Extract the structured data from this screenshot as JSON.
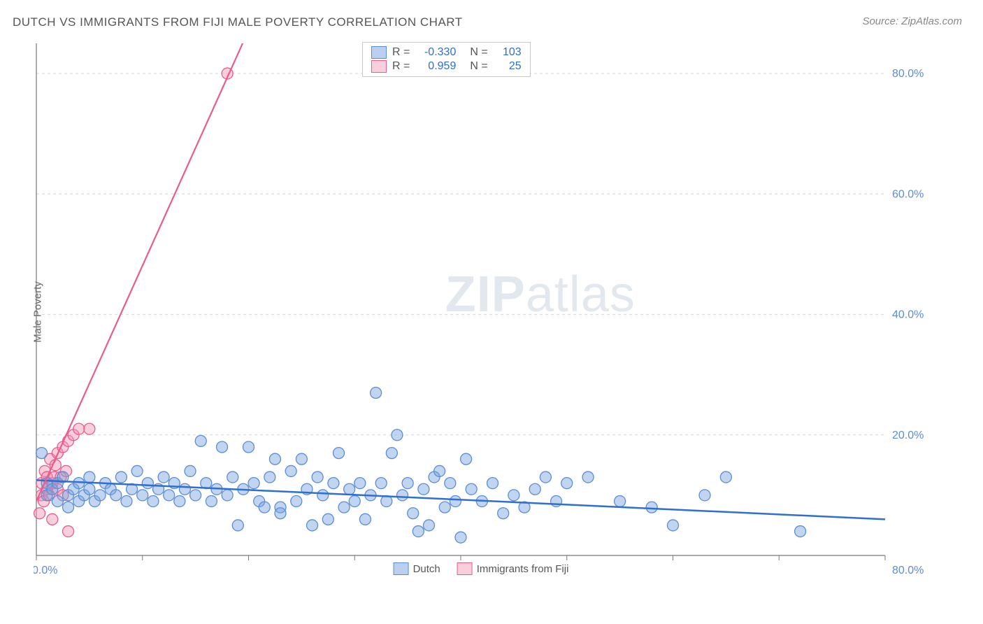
{
  "title": "DUTCH VS IMMIGRANTS FROM FIJI MALE POVERTY CORRELATION CHART",
  "source": "Source: ZipAtlas.com",
  "ylabel": "Male Poverty",
  "watermark_a": "ZIP",
  "watermark_b": "atlas",
  "chart": {
    "type": "scatter",
    "xlim": [
      0,
      80
    ],
    "ylim": [
      0,
      85
    ],
    "ytick_values": [
      20,
      40,
      60,
      80
    ],
    "ytick_labels": [
      "20.0%",
      "40.0%",
      "60.0%",
      "80.0%"
    ],
    "xtick_values": [
      0,
      10,
      20,
      30,
      40,
      50,
      60,
      70,
      80
    ],
    "x_origin_label": "0.0%",
    "x_end_label": "80.0%",
    "grid_color": "#d8d8d8",
    "axis_color": "#777777",
    "background_color": "#ffffff",
    "series": [
      {
        "name": "Dutch",
        "fill": "rgba(118,162,222,0.45)",
        "stroke": "#5b8dd6",
        "marker_r": 8,
        "trend": {
          "x1": 0,
          "y1": 12.5,
          "x2": 80,
          "y2": 6.0,
          "color": "#2f6fd0",
          "width": 2.5
        },
        "points": [
          [
            0.5,
            17
          ],
          [
            1,
            12
          ],
          [
            1,
            10
          ],
          [
            1.5,
            11
          ],
          [
            2,
            9
          ],
          [
            2,
            12
          ],
          [
            2.5,
            13
          ],
          [
            3,
            10
          ],
          [
            3,
            8
          ],
          [
            3.5,
            11
          ],
          [
            4,
            9
          ],
          [
            4,
            12
          ],
          [
            4.5,
            10
          ],
          [
            5,
            11
          ],
          [
            5,
            13
          ],
          [
            5.5,
            9
          ],
          [
            6,
            10
          ],
          [
            6.5,
            12
          ],
          [
            7,
            11
          ],
          [
            7.5,
            10
          ],
          [
            8,
            13
          ],
          [
            8.5,
            9
          ],
          [
            9,
            11
          ],
          [
            9.5,
            14
          ],
          [
            10,
            10
          ],
          [
            10.5,
            12
          ],
          [
            11,
            9
          ],
          [
            11.5,
            11
          ],
          [
            12,
            13
          ],
          [
            12.5,
            10
          ],
          [
            13,
            12
          ],
          [
            13.5,
            9
          ],
          [
            14,
            11
          ],
          [
            14.5,
            14
          ],
          [
            15,
            10
          ],
          [
            15.5,
            19
          ],
          [
            16,
            12
          ],
          [
            16.5,
            9
          ],
          [
            17,
            11
          ],
          [
            17.5,
            18
          ],
          [
            18,
            10
          ],
          [
            18.5,
            13
          ],
          [
            19,
            5
          ],
          [
            19.5,
            11
          ],
          [
            20,
            18
          ],
          [
            20.5,
            12
          ],
          [
            21,
            9
          ],
          [
            21.5,
            8
          ],
          [
            22,
            13
          ],
          [
            22.5,
            16
          ],
          [
            23,
            8
          ],
          [
            23,
            7
          ],
          [
            24,
            14
          ],
          [
            24.5,
            9
          ],
          [
            25,
            16
          ],
          [
            25.5,
            11
          ],
          [
            26,
            5
          ],
          [
            26.5,
            13
          ],
          [
            27,
            10
          ],
          [
            27.5,
            6
          ],
          [
            28,
            12
          ],
          [
            28.5,
            17
          ],
          [
            29,
            8
          ],
          [
            29.5,
            11
          ],
          [
            30,
            9
          ],
          [
            30.5,
            12
          ],
          [
            31,
            6
          ],
          [
            31.5,
            10
          ],
          [
            32,
            27
          ],
          [
            32.5,
            12
          ],
          [
            33,
            9
          ],
          [
            33.5,
            17
          ],
          [
            34,
            20
          ],
          [
            34.5,
            10
          ],
          [
            35,
            12
          ],
          [
            35.5,
            7
          ],
          [
            36,
            4
          ],
          [
            36.5,
            11
          ],
          [
            37,
            5
          ],
          [
            37.5,
            13
          ],
          [
            38,
            14
          ],
          [
            38.5,
            8
          ],
          [
            39,
            12
          ],
          [
            39.5,
            9
          ],
          [
            40,
            3
          ],
          [
            40.5,
            16
          ],
          [
            41,
            11
          ],
          [
            42,
            9
          ],
          [
            43,
            12
          ],
          [
            44,
            7
          ],
          [
            45,
            10
          ],
          [
            46,
            8
          ],
          [
            47,
            11
          ],
          [
            48,
            13
          ],
          [
            49,
            9
          ],
          [
            50,
            12
          ],
          [
            52,
            13
          ],
          [
            55,
            9
          ],
          [
            58,
            8
          ],
          [
            60,
            5
          ],
          [
            63,
            10
          ],
          [
            65,
            13
          ],
          [
            72,
            4
          ]
        ]
      },
      {
        "name": "Immigrants from Fiji",
        "fill": "rgba(242,148,178,0.45)",
        "stroke": "#e85d8c",
        "marker_r": 8,
        "trend": {
          "x1": 0,
          "y1": 9.0,
          "x2": 22,
          "y2": 95,
          "color": "#e85d8c",
          "width": 2.2
        },
        "points": [
          [
            0.3,
            7
          ],
          [
            0.5,
            10
          ],
          [
            0.5,
            12
          ],
          [
            0.7,
            9
          ],
          [
            0.8,
            14
          ],
          [
            1,
            11
          ],
          [
            1,
            13
          ],
          [
            1.2,
            10
          ],
          [
            1.3,
            16
          ],
          [
            1.5,
            12
          ],
          [
            1.5,
            6
          ],
          [
            1.7,
            13
          ],
          [
            1.8,
            15
          ],
          [
            2,
            11
          ],
          [
            2,
            17
          ],
          [
            2.3,
            13
          ],
          [
            2.5,
            18
          ],
          [
            2.5,
            10
          ],
          [
            2.8,
            14
          ],
          [
            3,
            19
          ],
          [
            3,
            4
          ],
          [
            3.5,
            20
          ],
          [
            4,
            21
          ],
          [
            5,
            21
          ],
          [
            18,
            80
          ]
        ]
      }
    ]
  },
  "stats": [
    {
      "swatch": "blue",
      "r_label": "R =",
      "r": "-0.330",
      "n_label": "N =",
      "n": "103"
    },
    {
      "swatch": "pink",
      "r_label": "R =",
      "r": "0.959",
      "n_label": "N =",
      "n": "25"
    }
  ],
  "legend": [
    {
      "swatch": "blue",
      "label": "Dutch"
    },
    {
      "swatch": "pink",
      "label": "Immigrants from Fiji"
    }
  ]
}
